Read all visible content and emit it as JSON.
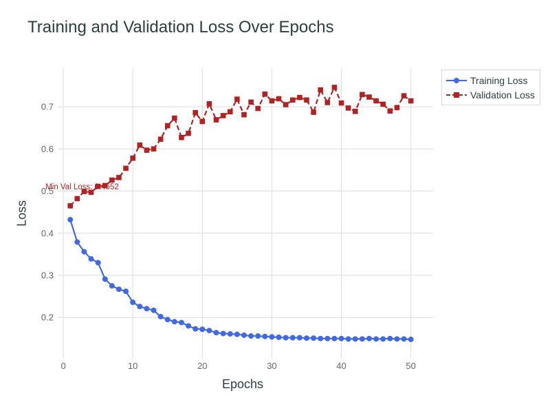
{
  "chart_data": {
    "type": "line",
    "title": "Training and Validation Loss Over Epochs",
    "xlabel": "Epochs",
    "ylabel": "Loss",
    "xlim": [
      -0.8,
      53.2
    ],
    "ylim": [
      0.104,
      0.79
    ],
    "x_ticks": [
      0,
      10,
      20,
      30,
      40,
      50
    ],
    "y_ticks": [
      0.2,
      0.3,
      0.4,
      0.5,
      0.6,
      0.7
    ],
    "grid": true,
    "legend_position": "top-right outside",
    "x": [
      1,
      2,
      3,
      4,
      5,
      6,
      7,
      8,
      9,
      10,
      11,
      12,
      13,
      14,
      15,
      16,
      17,
      18,
      19,
      20,
      21,
      22,
      23,
      24,
      25,
      26,
      27,
      28,
      29,
      30,
      31,
      32,
      33,
      34,
      35,
      36,
      37,
      38,
      39,
      40,
      41,
      42,
      43,
      44,
      45,
      46,
      47,
      48,
      49,
      50
    ],
    "series": [
      {
        "name": "Training Loss",
        "color": "#4169e1",
        "line_style": "solid",
        "marker": "circle",
        "values": [
          0.432,
          0.379,
          0.356,
          0.339,
          0.33,
          0.291,
          0.275,
          0.267,
          0.262,
          0.236,
          0.226,
          0.221,
          0.217,
          0.202,
          0.195,
          0.19,
          0.188,
          0.18,
          0.173,
          0.172,
          0.169,
          0.164,
          0.162,
          0.161,
          0.16,
          0.158,
          0.156,
          0.156,
          0.155,
          0.154,
          0.153,
          0.152,
          0.152,
          0.152,
          0.151,
          0.151,
          0.15,
          0.15,
          0.15,
          0.15,
          0.149,
          0.149,
          0.149,
          0.15,
          0.149,
          0.149,
          0.15,
          0.149,
          0.149,
          0.148
        ]
      },
      {
        "name": "Validation Loss",
        "color": "#b22222",
        "line_style": "dash",
        "marker": "square",
        "values": [
          0.465,
          0.482,
          0.499,
          0.497,
          0.511,
          0.513,
          0.526,
          0.532,
          0.554,
          0.578,
          0.609,
          0.597,
          0.6,
          0.623,
          0.655,
          0.673,
          0.627,
          0.637,
          0.686,
          0.665,
          0.707,
          0.669,
          0.679,
          0.688,
          0.718,
          0.681,
          0.711,
          0.696,
          0.73,
          0.714,
          0.719,
          0.705,
          0.716,
          0.722,
          0.716,
          0.687,
          0.74,
          0.71,
          0.746,
          0.709,
          0.697,
          0.689,
          0.729,
          0.723,
          0.714,
          0.706,
          0.69,
          0.698,
          0.726,
          0.714
        ]
      }
    ],
    "annotations": [
      {
        "text": "Min Val Loss: 0.4652",
        "x": 1,
        "y": 0.465,
        "color": "#b22222"
      }
    ]
  }
}
